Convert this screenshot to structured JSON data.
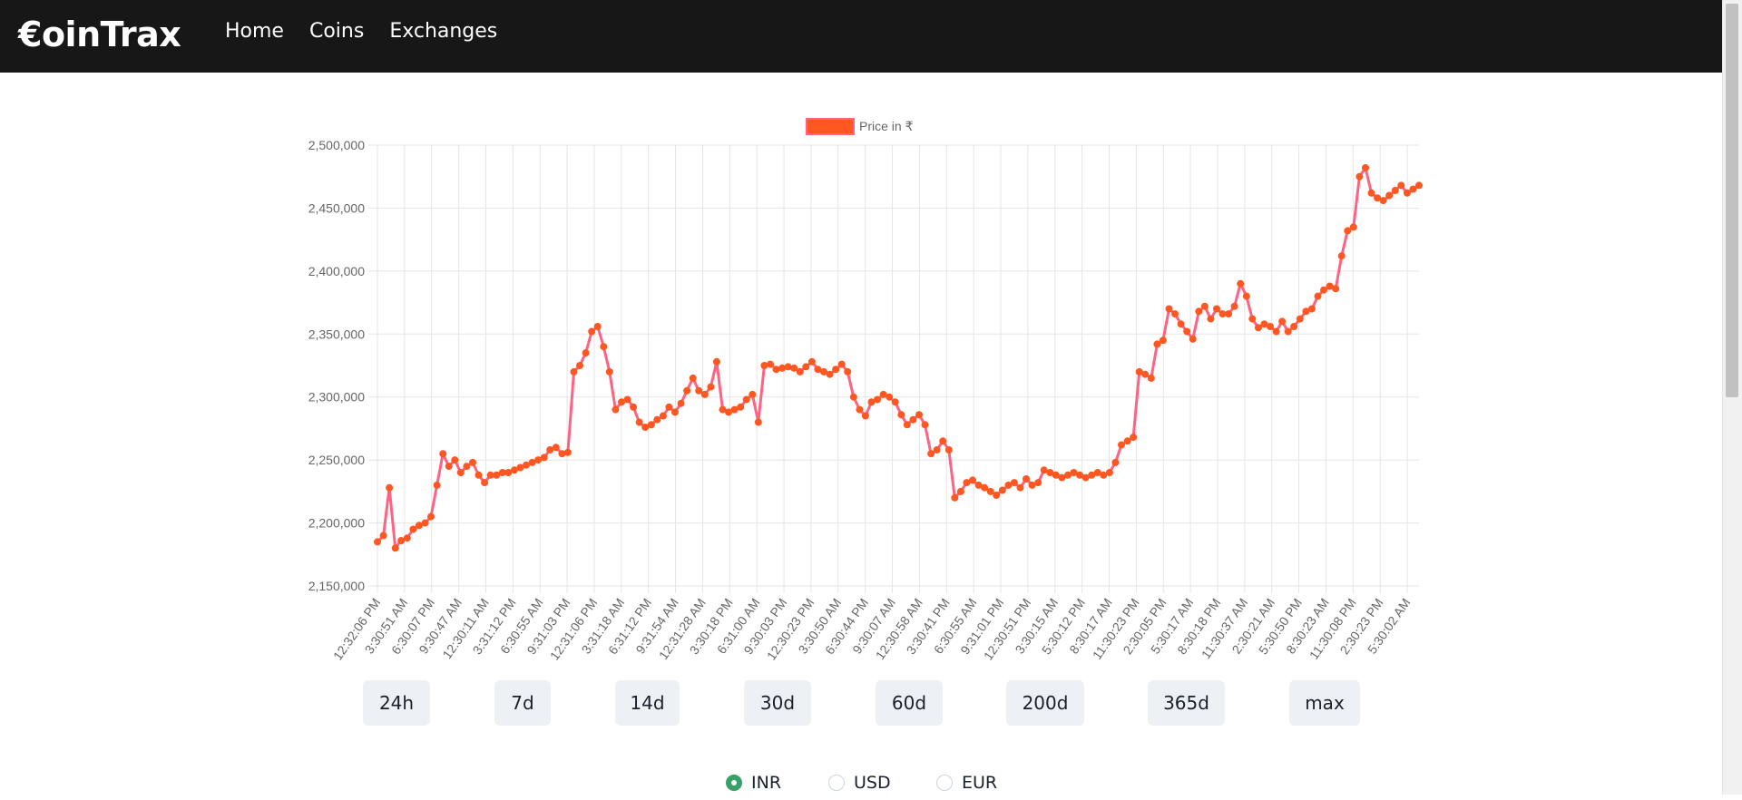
{
  "nav": {
    "brand": "€oinTrax",
    "links": [
      "Home",
      "Coins",
      "Exchanges"
    ]
  },
  "chart_data": {
    "type": "line",
    "legend": "Price in ₹",
    "legend_placement": "top-center",
    "line_color": "#ff6384",
    "point_color": "#ff5722",
    "grid": true,
    "ylim": [
      2150000,
      2500000
    ],
    "y_ticks": [
      "2,500,000",
      "2,450,000",
      "2,400,000",
      "2,350,000",
      "2,300,000",
      "2,250,000",
      "2,200,000",
      "2,150,000"
    ],
    "x_tick_labels": [
      "12:32:06 PM",
      "3:30:51 AM",
      "6:30:07 PM",
      "9:30:47 AM",
      "12:30:11 AM",
      "3:31:12 PM",
      "6:30:55 AM",
      "9:31:03 PM",
      "12:31:06 PM",
      "3:31:18 AM",
      "6:31:12 PM",
      "9:31:54 AM",
      "12:31:28 AM",
      "3:30:18 PM",
      "6:31:00 AM",
      "9:30:03 PM",
      "12:30:23 PM",
      "3:30:50 AM",
      "6:30:44 PM",
      "9:30:07 AM",
      "12:30:58 AM",
      "3:30:41 PM",
      "6:30:55 AM",
      "9:31:01 PM",
      "12:30:51 PM",
      "3:30:15 AM",
      "5:30:12 PM",
      "8:30:17 AM",
      "11:30:23 PM",
      "2:30:05 PM",
      "5:30:17 AM",
      "8:30:18 PM",
      "11:30:37 AM",
      "2:30:21 AM",
      "5:30:50 PM",
      "8:30:23 AM",
      "11:30:08 PM",
      "2:30:23 PM",
      "5:30:02 AM"
    ],
    "values": [
      2185000,
      2190000,
      2228000,
      2180000,
      2186000,
      2188000,
      2195000,
      2198000,
      2200000,
      2205000,
      2230000,
      2255000,
      2245000,
      2250000,
      2240000,
      2245000,
      2248000,
      2238000,
      2232000,
      2238000,
      2238000,
      2240000,
      2240000,
      2242000,
      2244000,
      2246000,
      2248000,
      2250000,
      2252000,
      2258000,
      2260000,
      2255000,
      2256000,
      2320000,
      2325000,
      2335000,
      2352000,
      2356000,
      2340000,
      2320000,
      2290000,
      2296000,
      2298000,
      2292000,
      2280000,
      2276000,
      2278000,
      2282000,
      2285000,
      2292000,
      2288000,
      2295000,
      2305000,
      2315000,
      2305000,
      2302000,
      2308000,
      2328000,
      2290000,
      2288000,
      2290000,
      2292000,
      2298000,
      2302000,
      2280000,
      2325000,
      2326000,
      2322000,
      2323000,
      2324000,
      2323000,
      2320000,
      2324000,
      2328000,
      2322000,
      2320000,
      2318000,
      2322000,
      2326000,
      2320000,
      2300000,
      2290000,
      2285000,
      2296000,
      2298000,
      2302000,
      2300000,
      2296000,
      2286000,
      2278000,
      2282000,
      2286000,
      2278000,
      2255000,
      2258000,
      2265000,
      2258000,
      2220000,
      2225000,
      2232000,
      2234000,
      2230000,
      2228000,
      2225000,
      2222000,
      2226000,
      2230000,
      2232000,
      2228000,
      2235000,
      2230000,
      2232000,
      2242000,
      2240000,
      2238000,
      2236000,
      2238000,
      2240000,
      2238000,
      2236000,
      2238000,
      2240000,
      2238000,
      2240000,
      2248000,
      2262000,
      2265000,
      2268000,
      2320000,
      2318000,
      2315000,
      2342000,
      2345000,
      2370000,
      2366000,
      2358000,
      2352000,
      2346000,
      2368000,
      2372000,
      2362000,
      2370000,
      2366000,
      2366000,
      2372000,
      2390000,
      2380000,
      2362000,
      2355000,
      2358000,
      2356000,
      2352000,
      2360000,
      2352000,
      2356000,
      2362000,
      2368000,
      2370000,
      2380000,
      2385000,
      2388000,
      2386000,
      2412000,
      2432000,
      2435000,
      2475000,
      2482000,
      2462000,
      2458000,
      2456000,
      2460000,
      2464000,
      2468000,
      2462000,
      2465000,
      2468000
    ]
  },
  "range_buttons": [
    "24h",
    "7d",
    "14d",
    "30d",
    "60d",
    "200d",
    "365d",
    "max"
  ],
  "currency": {
    "options": [
      "INR",
      "USD",
      "EUR"
    ],
    "selected": "INR"
  }
}
